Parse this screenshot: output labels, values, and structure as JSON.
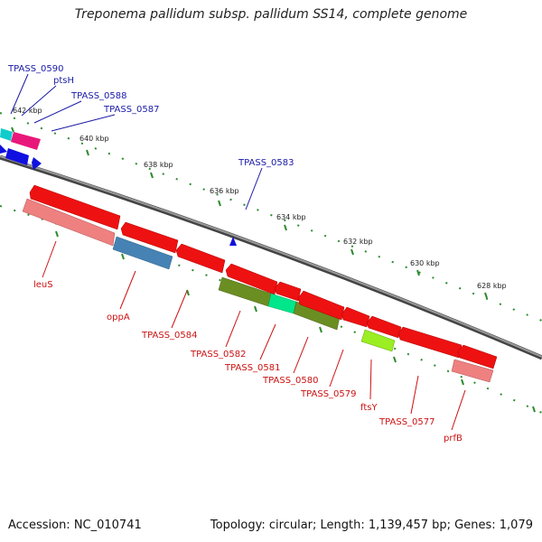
{
  "title": "Treponema pallidum subsp. pallidum SS14, complete genome",
  "footer": {
    "accession": "Accession: NC_010741",
    "summary": "Topology: circular; Length: 1,139,457 bp; Genes: 1,079"
  },
  "colors": {
    "backbone": "#808080",
    "tick": "#2e8b2e",
    "forward_label": "#1a1aa8",
    "reverse_label": "#cc1111"
  },
  "ruler": {
    "labels": [
      "642 kbp",
      "640 kbp",
      "638 kbp",
      "636 kbp",
      "634 kbp",
      "632 kbp",
      "630 kbp",
      "628 kbp"
    ]
  },
  "forward_labels": [
    "TPASS_0590",
    "ptsH",
    "TPASS_0588",
    "TPASS_0587",
    "TPASS_0583"
  ],
  "reverse_labels": [
    "leuS",
    "oppA",
    "TPASS_0584",
    "TPASS_0582",
    "TPASS_0581",
    "TPASS_0580",
    "TPASS_0579",
    "ftsY",
    "TPASS_0577",
    "prfB"
  ]
}
